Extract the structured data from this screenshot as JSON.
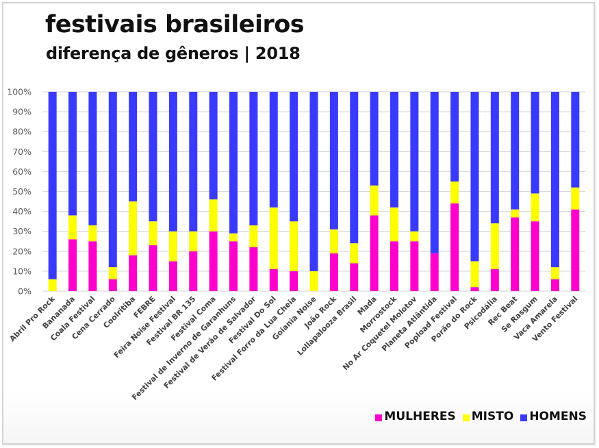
{
  "colors": {
    "mulheres": "#ff00cc",
    "misto": "#ffff00",
    "homens": "#3a3aff",
    "grid": "#d9d9d9"
  },
  "chart_data": {
    "type": "bar",
    "stacked": "percent",
    "title": "festivais brasileiros",
    "subtitle": "diferença de gêneros | 2018",
    "xlabel": "",
    "ylabel": "",
    "ylim": [
      0,
      100
    ],
    "y_ticks": [
      "0%",
      "10%",
      "20%",
      "30%",
      "40%",
      "50%",
      "60%",
      "70%",
      "80%",
      "90%",
      "100%"
    ],
    "grid": true,
    "legend_position": "bottom-right",
    "categories": [
      "Abril Pro Rock",
      "Bananada",
      "Coala Festival",
      "Cena Cerrado",
      "Coolritiba",
      "FEBRE",
      "Feira Noise Festival",
      "Festival BR 135",
      "Festival Coma",
      "Festival de Inverno de Garanhuns",
      "Festival de Verão de Salvador",
      "Festival Do Sol",
      "Festival Forro da Lua Cheia",
      "Goiania Noise",
      "João Rock",
      "Lollapalooza Brasil",
      "Mada",
      "Morrostock",
      "No Ar Coquetel Molotov",
      "Planeta Atlântida",
      "Popload Festival",
      "Porão do Rock",
      "Psicodália",
      "Rec Beat",
      "Se Rasgum",
      "Vaca Amarela",
      "Vento Festival"
    ],
    "series": [
      {
        "name": "MULHERES",
        "values": [
          0,
          26,
          25,
          6,
          18,
          23,
          15,
          20,
          30,
          25,
          22,
          11,
          10,
          0,
          19,
          14,
          38,
          25,
          25,
          19,
          44,
          2,
          11,
          37,
          35,
          6,
          41
        ]
      },
      {
        "name": "MISTO",
        "values": [
          6,
          12,
          8,
          6,
          27,
          12,
          15,
          10,
          16,
          4,
          11,
          31,
          25,
          10,
          12,
          10,
          15,
          17,
          5,
          0,
          11,
          13,
          23,
          4,
          14,
          6,
          11
        ]
      },
      {
        "name": "HOMENS",
        "values": [
          94,
          62,
          67,
          88,
          55,
          65,
          70,
          70,
          54,
          71,
          67,
          58,
          65,
          90,
          69,
          76,
          47,
          58,
          70,
          81,
          45,
          85,
          66,
          59,
          51,
          88,
          48
        ]
      }
    ]
  },
  "legend": [
    {
      "label": "MULHERES",
      "color_key": "mulheres"
    },
    {
      "label": "MISTO",
      "color_key": "misto"
    },
    {
      "label": "HOMENS",
      "color_key": "homens"
    }
  ]
}
